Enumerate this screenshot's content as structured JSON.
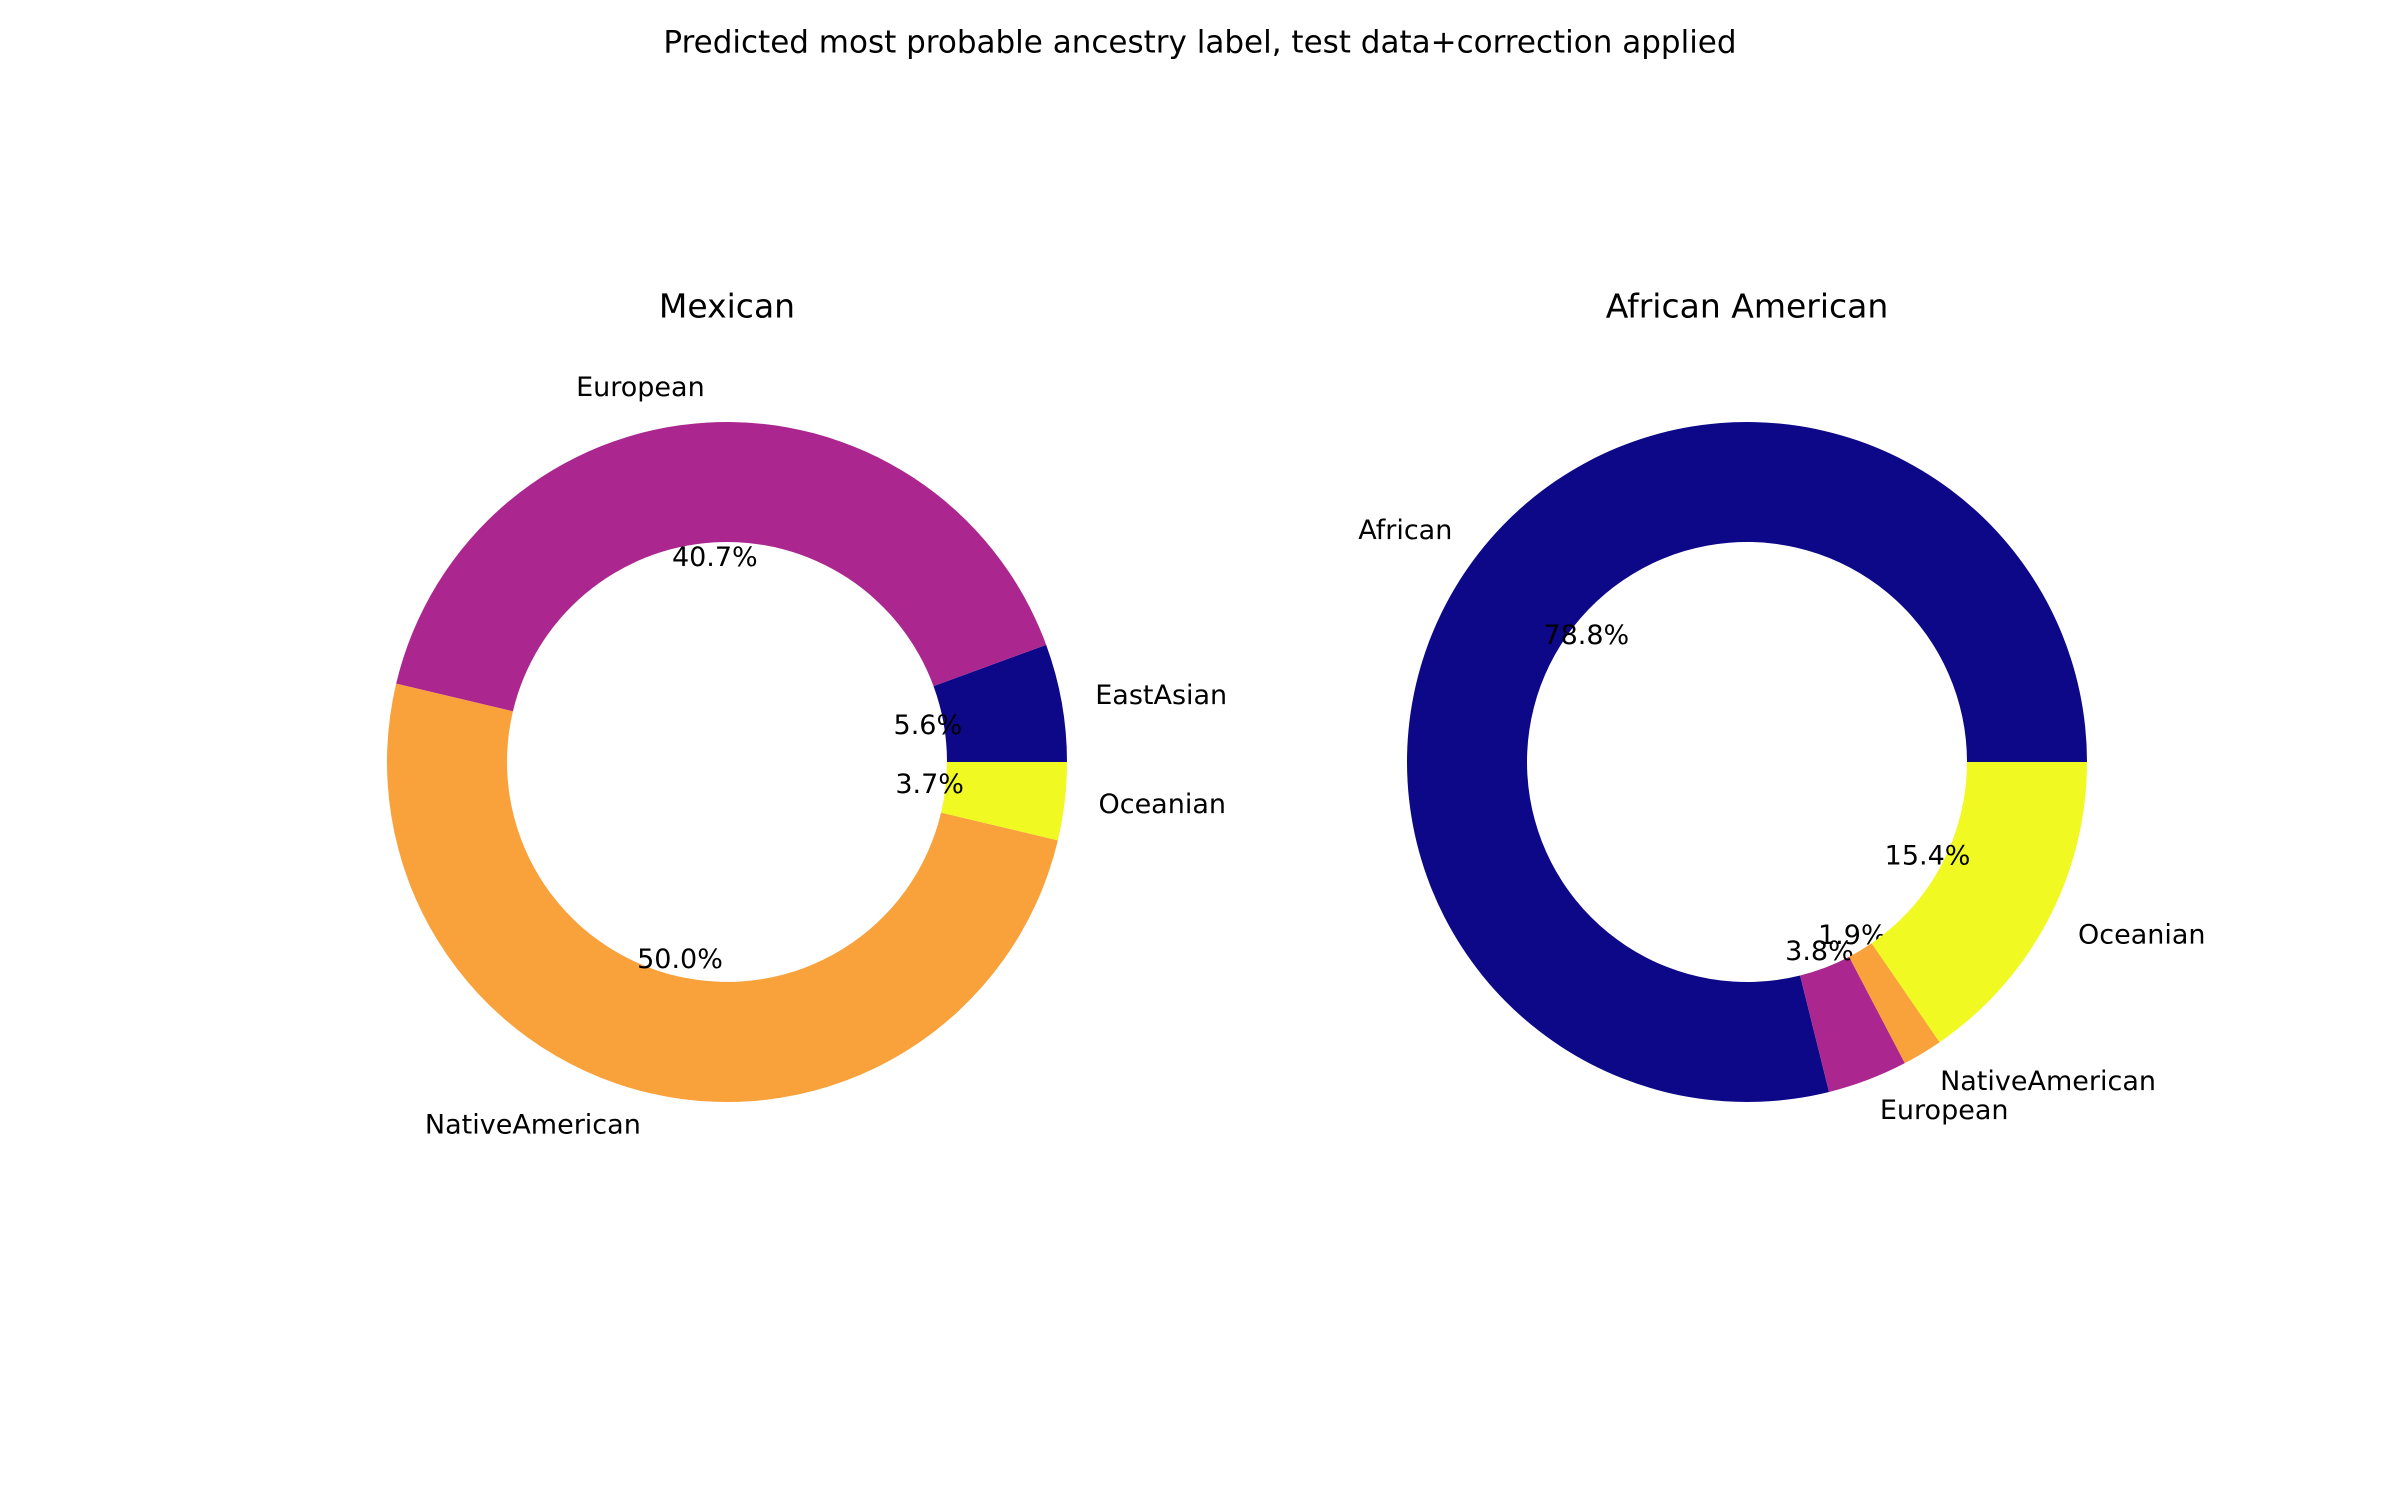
{
  "figure_title": "Predicted most probable ancestry label, test data+correction applied",
  "chart_data": [
    {
      "type": "pie",
      "style": "donut",
      "title": "Mexican",
      "slices": [
        {
          "label": "EastAsian",
          "value": 5.6,
          "pct_label": "5.6%",
          "color": "#0d0887"
        },
        {
          "label": "European",
          "value": 40.7,
          "pct_label": "40.7%",
          "color": "#ab278f"
        },
        {
          "label": "NativeAmerican",
          "value": 50.0,
          "pct_label": "50.0%",
          "color": "#f9a13a"
        },
        {
          "label": "Oceanian",
          "value": 3.7,
          "pct_label": "3.7%",
          "color": "#f0f921"
        }
      ]
    },
    {
      "type": "pie",
      "style": "donut",
      "title": "African American",
      "slices": [
        {
          "label": "African",
          "value": 78.8,
          "pct_label": "78.8%",
          "color": "#0d0887"
        },
        {
          "label": "European",
          "value": 3.8,
          "pct_label": "3.8%",
          "color": "#ab278f"
        },
        {
          "label": "NativeAmerican",
          "value": 1.9,
          "pct_label": "1.9%",
          "color": "#f9a13a"
        },
        {
          "label": "Oceanian",
          "value": 15.4,
          "pct_label": "15.4%",
          "color": "#f0f921"
        }
      ]
    }
  ]
}
